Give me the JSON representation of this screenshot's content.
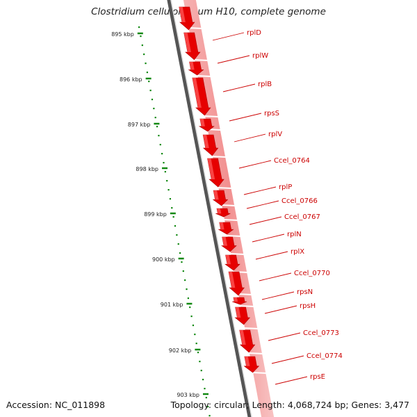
{
  "title": "Clostridium cellulolyticum H10, complete genome",
  "footer": {
    "accession": "Accession: NC_011898",
    "summary": "Topology: circular; Length: 4,068,724 bp; Genes: 3,477"
  },
  "ticks": [
    {
      "pos": 895,
      "label": "895 kbp"
    },
    {
      "pos": 896,
      "label": "896 kbp"
    },
    {
      "pos": 897,
      "label": "897 kbp"
    },
    {
      "pos": 898,
      "label": "898 kbp"
    },
    {
      "pos": 899,
      "label": "899 kbp"
    },
    {
      "pos": 900,
      "label": "900 kbp"
    },
    {
      "pos": 901,
      "label": "901 kbp"
    },
    {
      "pos": 902,
      "label": "902 kbp"
    },
    {
      "pos": 903,
      "label": "903 kbp"
    }
  ],
  "genes": [
    {
      "name": "rplD"
    },
    {
      "name": "rplW"
    },
    {
      "name": "rplB"
    },
    {
      "name": "rpsS"
    },
    {
      "name": "rplV"
    },
    {
      "name": "Ccel_0764"
    },
    {
      "name": "rplP"
    },
    {
      "name": "Ccel_0766"
    },
    {
      "name": "Ccel_0767"
    },
    {
      "name": "rplN"
    },
    {
      "name": "rplX"
    },
    {
      "name": "Ccel_0770"
    },
    {
      "name": "rpsN"
    },
    {
      "name": "rpsH"
    },
    {
      "name": "Ccel_0773"
    },
    {
      "name": "Ccel_0774"
    },
    {
      "name": "rpsE"
    }
  ],
  "colors": {
    "gene": "#e60000",
    "gene_light": "#ff5a5a",
    "gene_dark": "#b00000",
    "band": "#f08c8c",
    "backbone": "#555555",
    "tick": "#118811",
    "label": "#cc0000"
  }
}
